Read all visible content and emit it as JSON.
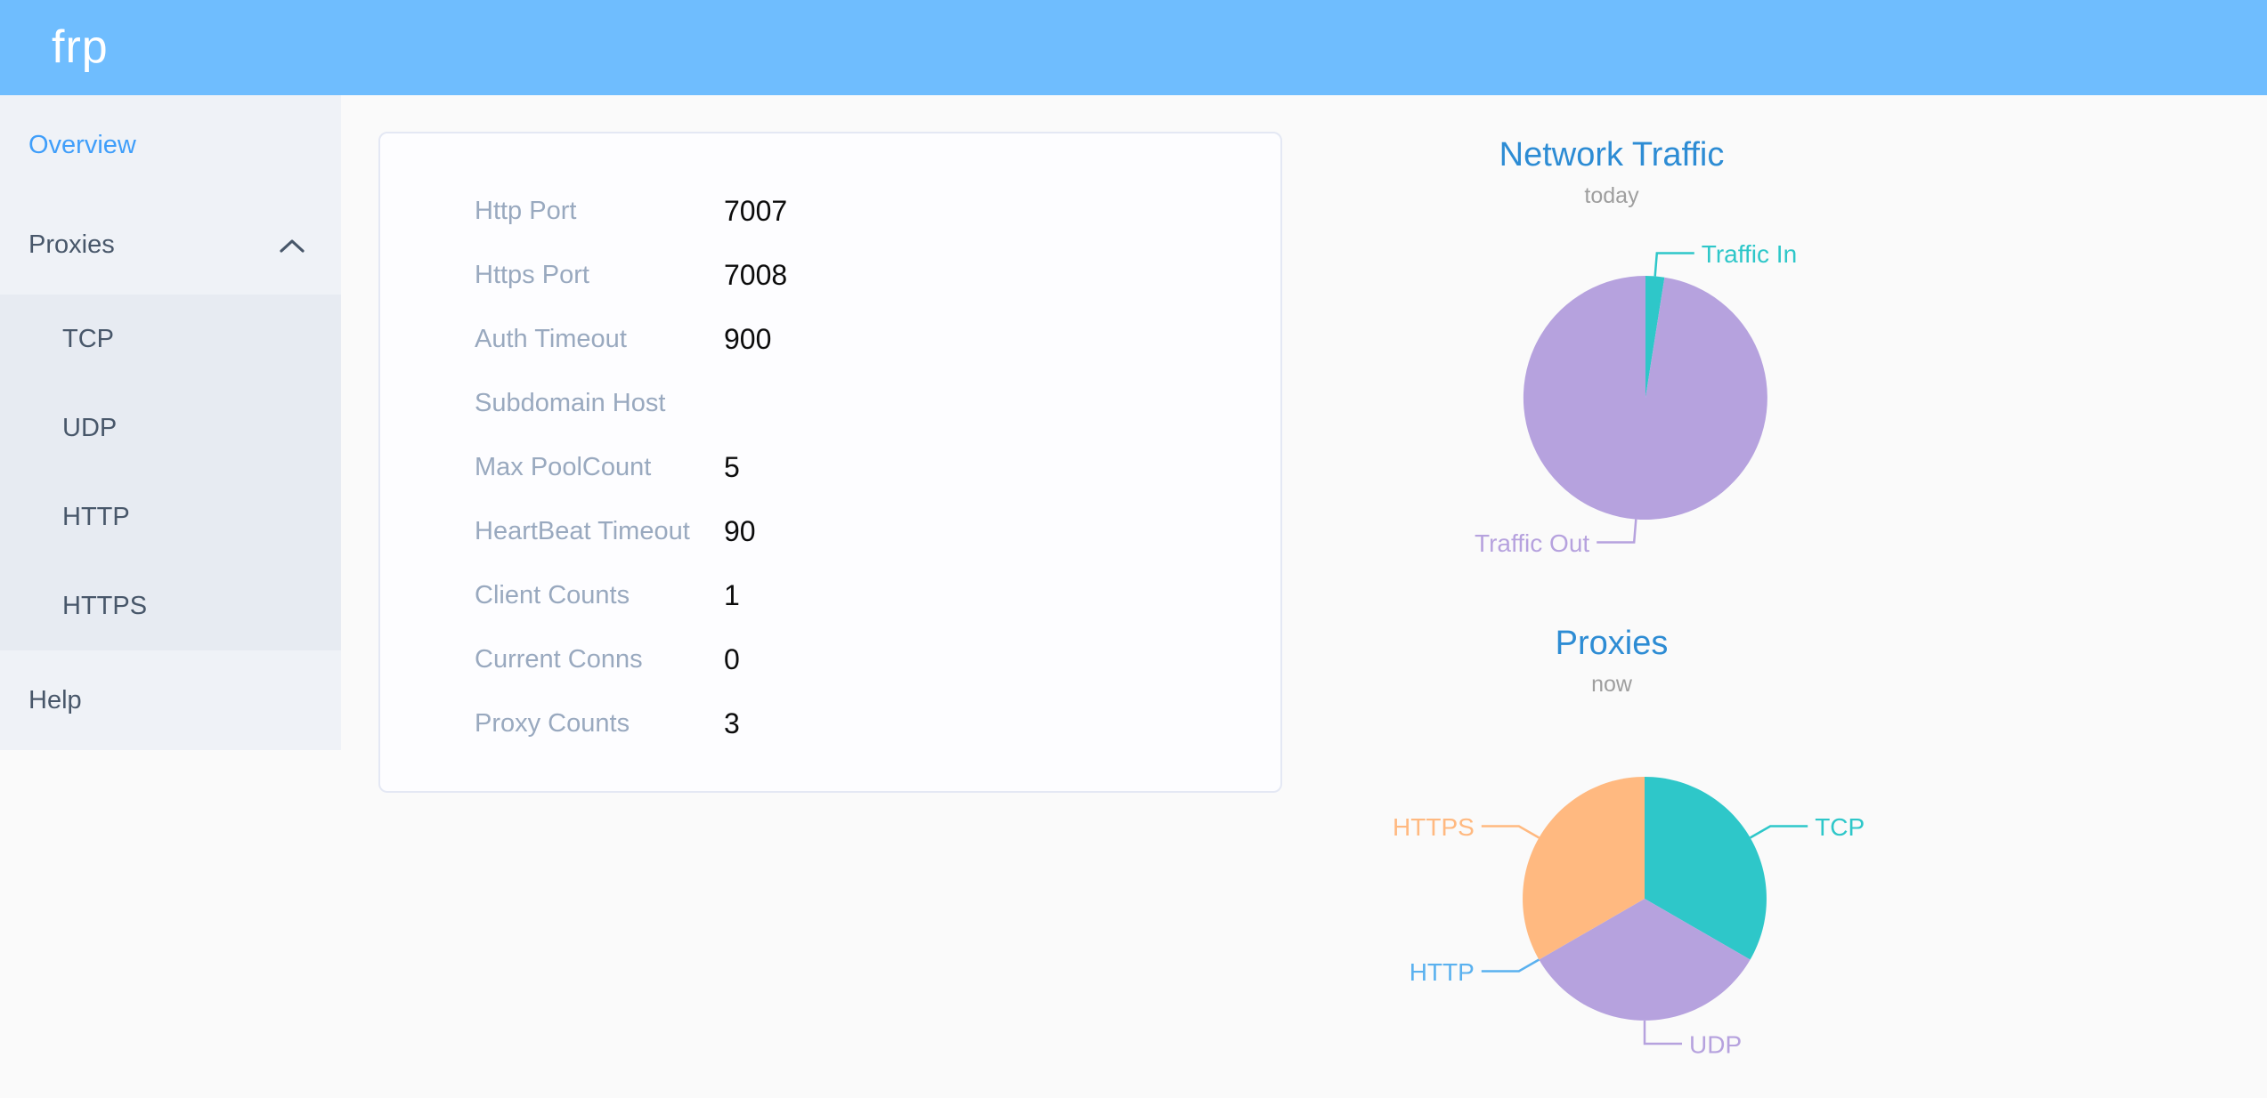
{
  "header": {
    "logo": "frp",
    "bg_color": "#6fbdfe"
  },
  "sidebar": {
    "active_color": "#3f9efa",
    "text_color": "#48576a",
    "items": [
      {
        "label": "Overview",
        "active": true
      },
      {
        "label": "Proxies",
        "expanded": true,
        "icon": "chevron-up"
      }
    ],
    "submenu": [
      "TCP",
      "UDP",
      "HTTP",
      "HTTPS"
    ],
    "help": "Help"
  },
  "server_info": {
    "rows": [
      {
        "label": "Http Port",
        "value": "7007"
      },
      {
        "label": "Https Port",
        "value": "7008"
      },
      {
        "label": "Auth Timeout",
        "value": "900"
      },
      {
        "label": "Subdomain Host",
        "value": ""
      },
      {
        "label": "Max PoolCount",
        "value": "5"
      },
      {
        "label": "HeartBeat Timeout",
        "value": "90"
      },
      {
        "label": "Client Counts",
        "value": "1"
      },
      {
        "label": "Current Conns",
        "value": "0"
      },
      {
        "label": "Proxy Counts",
        "value": "3"
      }
    ]
  },
  "chart_data": [
    {
      "type": "pie",
      "title": "Network Traffic",
      "subtitle": "today",
      "legend_position": "callout-labels",
      "title_color": "#2d8cd4",
      "subtitle_color": "#9e9e9e",
      "series": [
        {
          "name": "Traffic In",
          "value": 2.5,
          "color": "#2ec7c9"
        },
        {
          "name": "Traffic Out",
          "value": 97.5,
          "color": "#b6a2de"
        }
      ]
    },
    {
      "type": "pie",
      "title": "Proxies",
      "subtitle": "now",
      "legend_position": "callout-labels",
      "title_color": "#2d8cd4",
      "subtitle_color": "#9e9e9e",
      "series": [
        {
          "name": "TCP",
          "value": 1,
          "color": "#2ec7c9"
        },
        {
          "name": "UDP",
          "value": 1,
          "color": "#b6a2de"
        },
        {
          "name": "HTTP",
          "value": 0,
          "color": "#5ab1ef"
        },
        {
          "name": "HTTPS",
          "value": 1,
          "color": "#ffb980"
        }
      ]
    }
  ]
}
